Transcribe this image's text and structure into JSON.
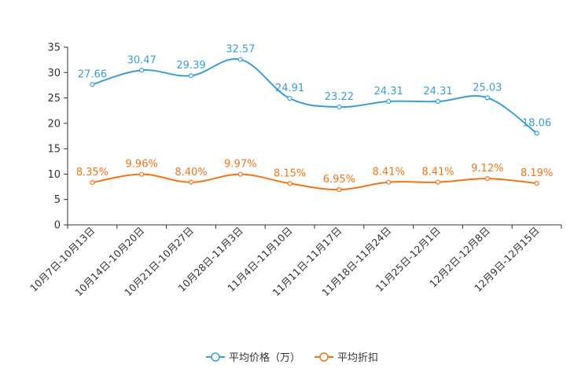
{
  "chart_data": {
    "type": "line",
    "title": "",
    "xlabel": "",
    "ylabel": "",
    "ylim": [
      0,
      35
    ],
    "yticks": [
      0,
      5,
      10,
      15,
      20,
      25,
      30,
      35
    ],
    "ytick_labels": [
      "0",
      "5",
      "10",
      "15",
      "20",
      "25",
      "30",
      "35"
    ],
    "grid": false,
    "legend_position": "bottom-center",
    "categories": [
      "10月7日-10月13日",
      "10月14日-10月20日",
      "10月21日-10月27日",
      "10月28日-11月3日",
      "11月4日-11月10日",
      "11月11日-11月17日",
      "11月18日-11月24日",
      "11月25日-12月1日",
      "12月2日-12月8日",
      "12月9日-12月15日"
    ],
    "series": [
      {
        "name": "平均价格（万）",
        "color": "#3a9fd0",
        "values": [
          27.66,
          30.47,
          29.39,
          32.57,
          24.91,
          23.22,
          24.31,
          24.31,
          25.03,
          18.06
        ],
        "labels": [
          "27.66",
          "30.47",
          "29.39",
          "32.57",
          "24.91",
          "23.22",
          "24.31",
          "24.31",
          "25.03",
          "18.06"
        ]
      },
      {
        "name": "平均折扣",
        "color": "#f07518",
        "values": [
          8.35,
          9.96,
          8.4,
          9.97,
          8.15,
          6.95,
          8.41,
          8.41,
          9.12,
          8.19
        ],
        "labels": [
          "8.35%",
          "9.96%",
          "8.40%",
          "9.97%",
          "8.15%",
          "6.95%",
          "8.41%",
          "8.41%",
          "9.12%",
          "8.19%"
        ]
      }
    ]
  }
}
